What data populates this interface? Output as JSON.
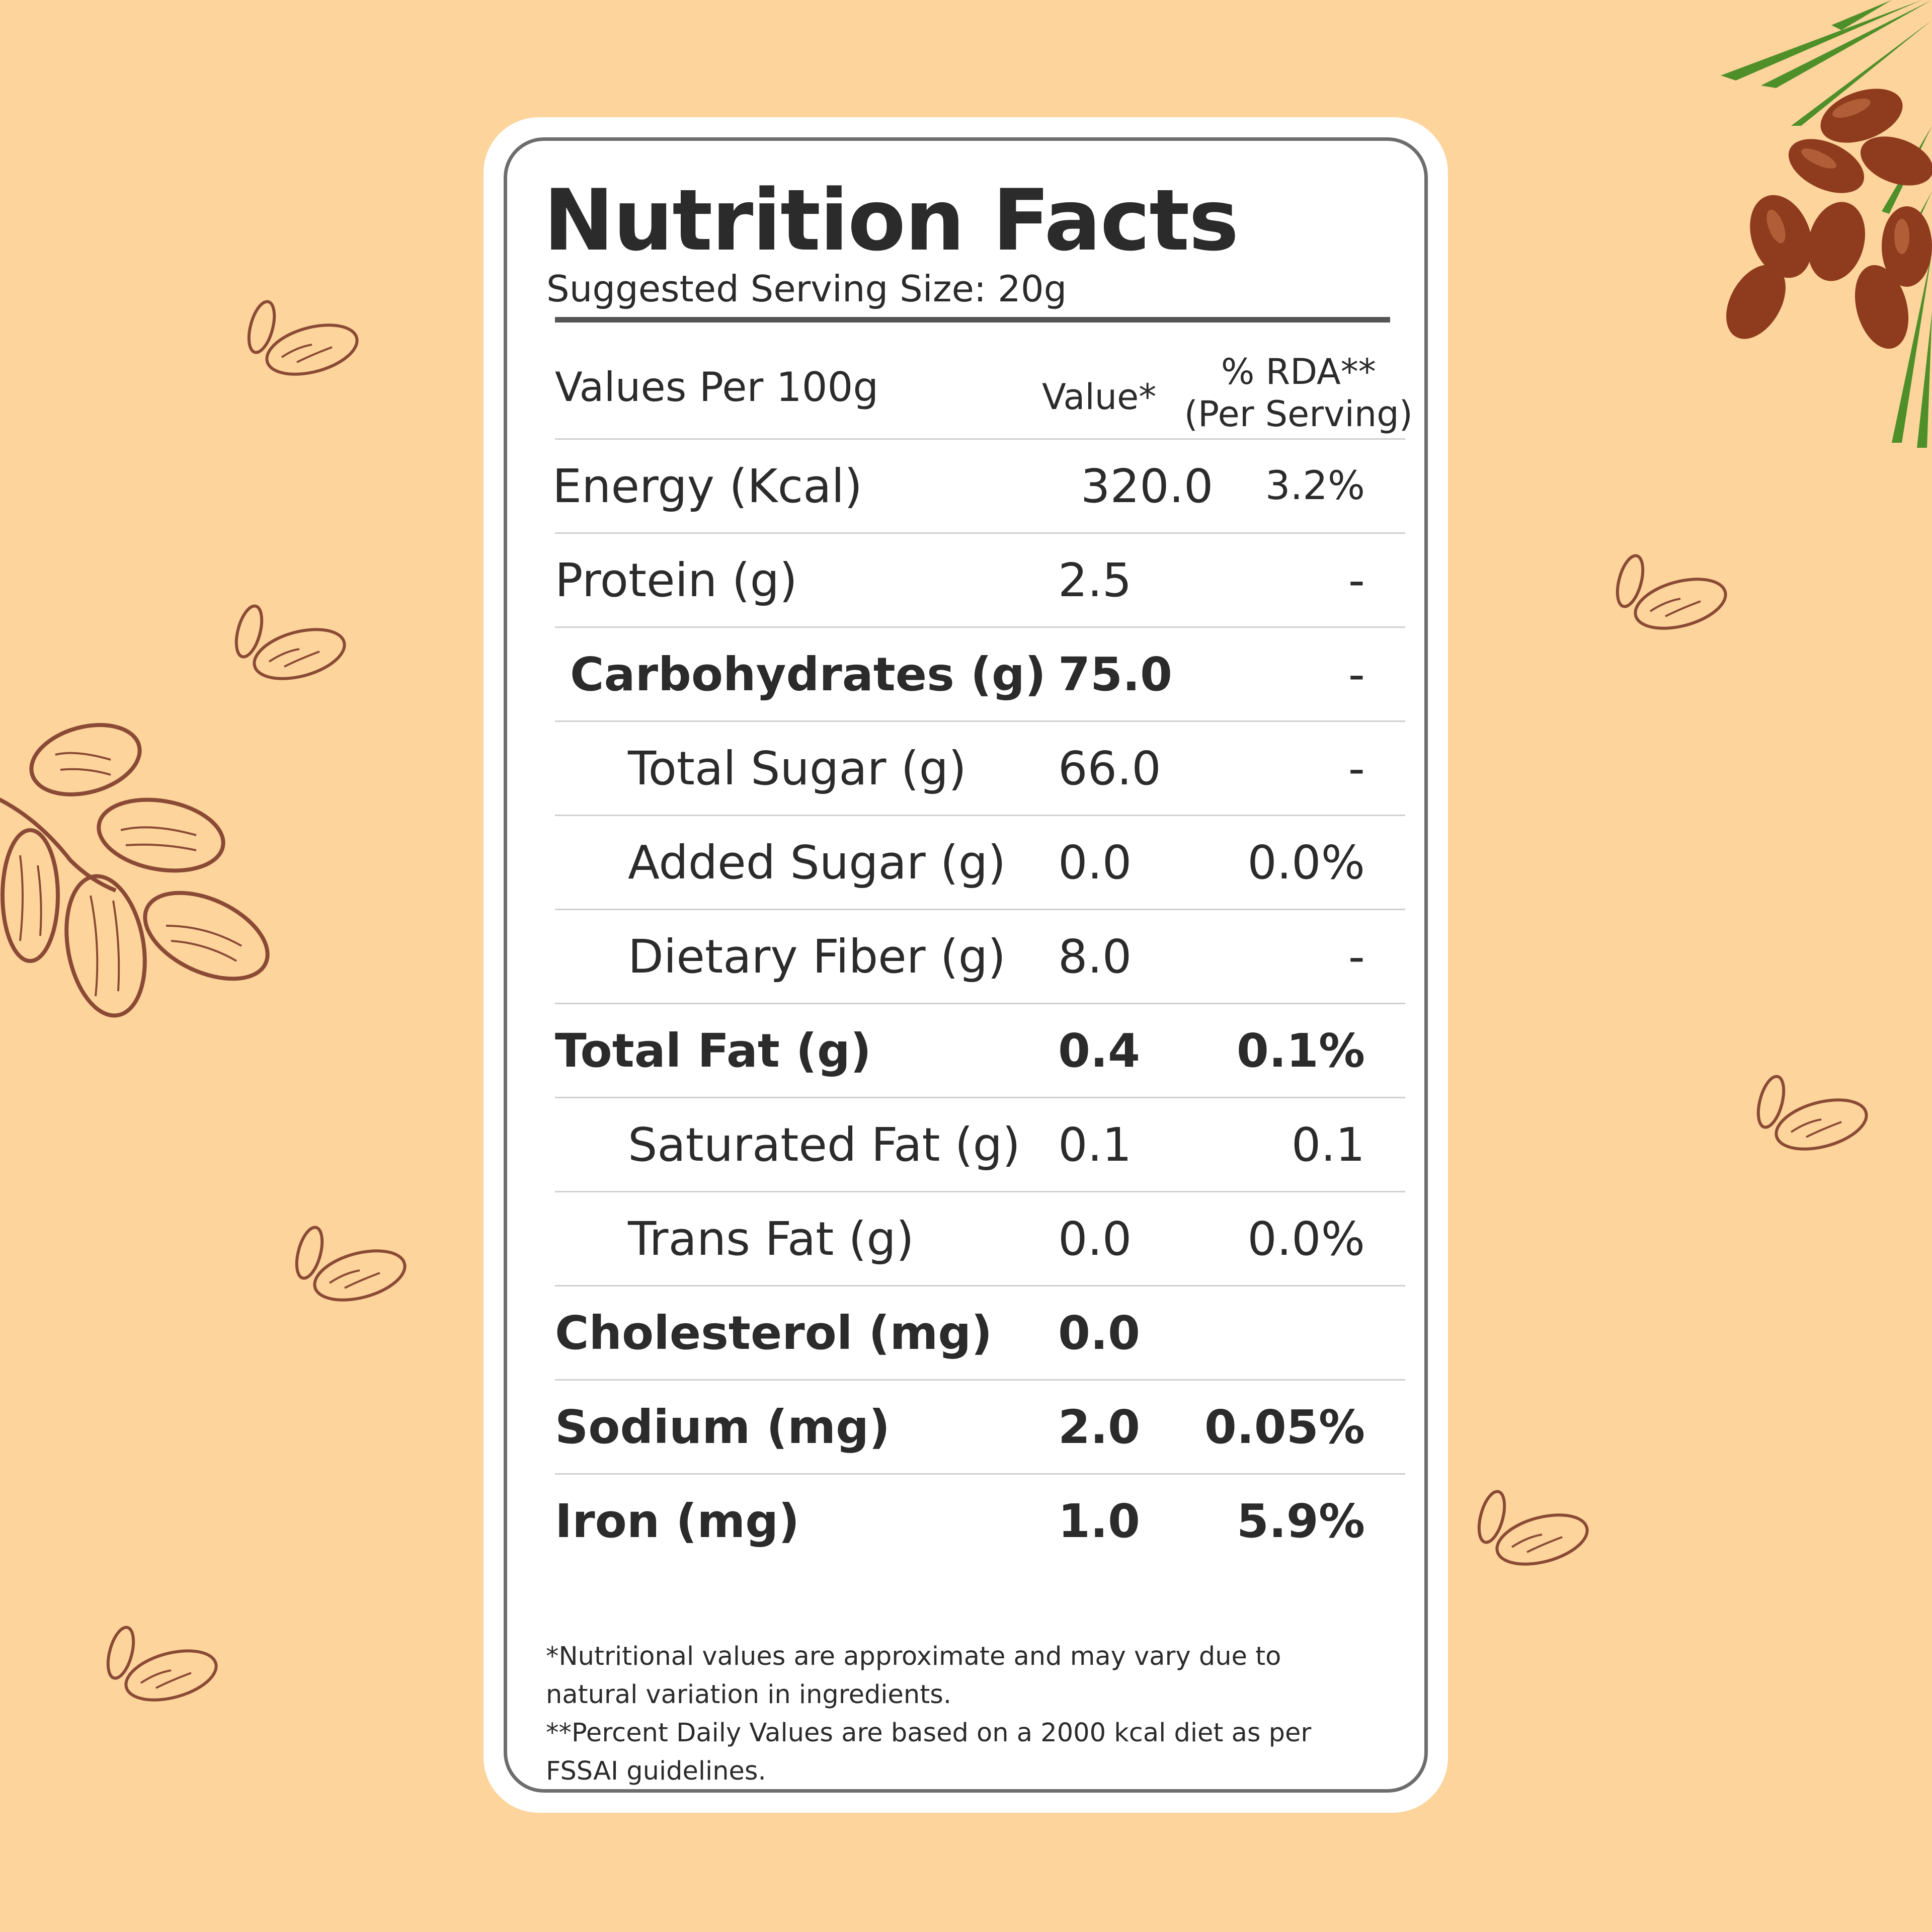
{
  "label": {
    "title": "Nutrition Facts",
    "serving_size": "Suggested Serving Size: 20g",
    "columns": {
      "name": "Values Per 100g",
      "value": "Value*",
      "rda_line1": "% RDA**",
      "rda_line2": "(Per Serving)"
    },
    "rows": [
      {
        "name": "Energy",
        "unit": "(Kcal)",
        "value": "320.0",
        "rda": "3.2%"
      },
      {
        "name": "Protein",
        "unit": "(g)",
        "value": "2.5",
        "rda": "-"
      },
      {
        "name": "Carbohydrates (g)",
        "unit": "",
        "value": "75.0",
        "rda": "-"
      },
      {
        "name": "Total Sugar",
        "unit": "(g)",
        "value": "66.0",
        "rda": "-"
      },
      {
        "name": "Added Sugar (g)",
        "unit": "",
        "value": "0.0",
        "rda": "0.0%"
      },
      {
        "name": "Dietary Fiber (g)",
        "unit": "",
        "value": "8.0",
        "rda": "-"
      },
      {
        "name": "Total Fat (g)",
        "unit": "",
        "value": "0.4",
        "rda": "0.1%"
      },
      {
        "name": "Saturated Fat (g)",
        "unit": "",
        "value": "0.1",
        "rda": "0.1"
      },
      {
        "name": "Trans Fat (g)",
        "unit": "",
        "value": "0.0",
        "rda": "0.0%"
      },
      {
        "name": "Cholesterol (mg)",
        "unit": "",
        "value": "0.0",
        "rda": ""
      },
      {
        "name": "Sodium (mg)",
        "unit": "",
        "value": "2.0",
        "rda": "0.05%"
      },
      {
        "name": "Iron (mg)",
        "unit": "",
        "value": "1.0",
        "rda": "5.9%"
      }
    ],
    "footnote1": "*Nutritional values are approximate and may vary due to natural variation in ingredients.",
    "footnote2": "**Percent Daily Values are based on a 2000 kcal diet as per FSSAI guidelines."
  },
  "colors": {
    "background": "#fdd49c",
    "card": "#ffffff",
    "text": "#2b2b2b",
    "illustration_outline": "#8a4a35",
    "date_fruit": "#8f3c1e",
    "palm_leaf": "#4e8f2a"
  },
  "icons": [
    "date-fruit-doodle-icon",
    "date-cluster-doodle-icon",
    "date-palm-branch-icon"
  ]
}
